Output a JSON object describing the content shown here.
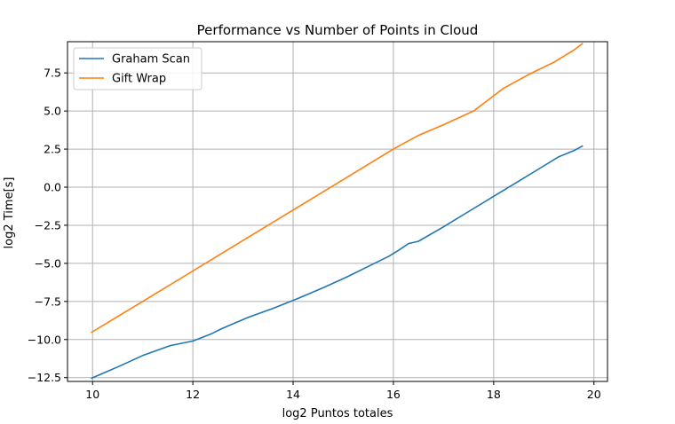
{
  "chart_data": {
    "type": "line",
    "title": "Performance vs Number of Points in Cloud",
    "xlabel": "log2 Puntos totales",
    "ylabel": "log2 Time[s]",
    "xlim": [
      9.5,
      20.27
    ],
    "ylim": [
      -12.75,
      9.55
    ],
    "xticks": [
      10,
      12,
      14,
      16,
      18,
      20
    ],
    "xtick_labels": [
      "10",
      "12",
      "14",
      "16",
      "18",
      "20"
    ],
    "yticks": [
      -12.5,
      -10.0,
      -7.5,
      -5.0,
      -2.5,
      0.0,
      2.5,
      5.0,
      7.5
    ],
    "ytick_labels": [
      "−12.5",
      "−10.0",
      "−7.5",
      "−5.0",
      "−2.5",
      "0.0",
      "2.5",
      "5.0",
      "7.5"
    ],
    "grid": true,
    "legend_position": "top-left",
    "series": [
      {
        "name": "Graham Scan",
        "color": "#1f77b4",
        "x": [
          9.97,
          10.5,
          11.0,
          11.55,
          12.0,
          12.35,
          12.6,
          13.1,
          13.6,
          14.1,
          14.6,
          15.1,
          15.5,
          15.9,
          16.1,
          16.3,
          16.5,
          17.0,
          17.5,
          18.0,
          18.5,
          19.0,
          19.3,
          19.6,
          19.78
        ],
        "y": [
          -12.55,
          -11.8,
          -11.05,
          -10.4,
          -10.1,
          -9.65,
          -9.25,
          -8.55,
          -7.95,
          -7.3,
          -6.6,
          -5.85,
          -5.2,
          -4.55,
          -4.15,
          -3.7,
          -3.55,
          -2.6,
          -1.6,
          -0.6,
          0.4,
          1.4,
          2.0,
          2.4,
          2.72
        ]
      },
      {
        "name": "Gift Wrap",
        "color": "#ff7f0e",
        "x": [
          9.97,
          11.0,
          12.0,
          13.0,
          14.0,
          15.0,
          16.0,
          16.5,
          17.0,
          17.6,
          18.2,
          18.7,
          19.2,
          19.6,
          19.78
        ],
        "y": [
          -9.55,
          -7.5,
          -5.5,
          -3.5,
          -1.5,
          0.5,
          2.5,
          3.4,
          4.1,
          5.0,
          6.5,
          7.4,
          8.2,
          9.0,
          9.45
        ]
      }
    ]
  }
}
